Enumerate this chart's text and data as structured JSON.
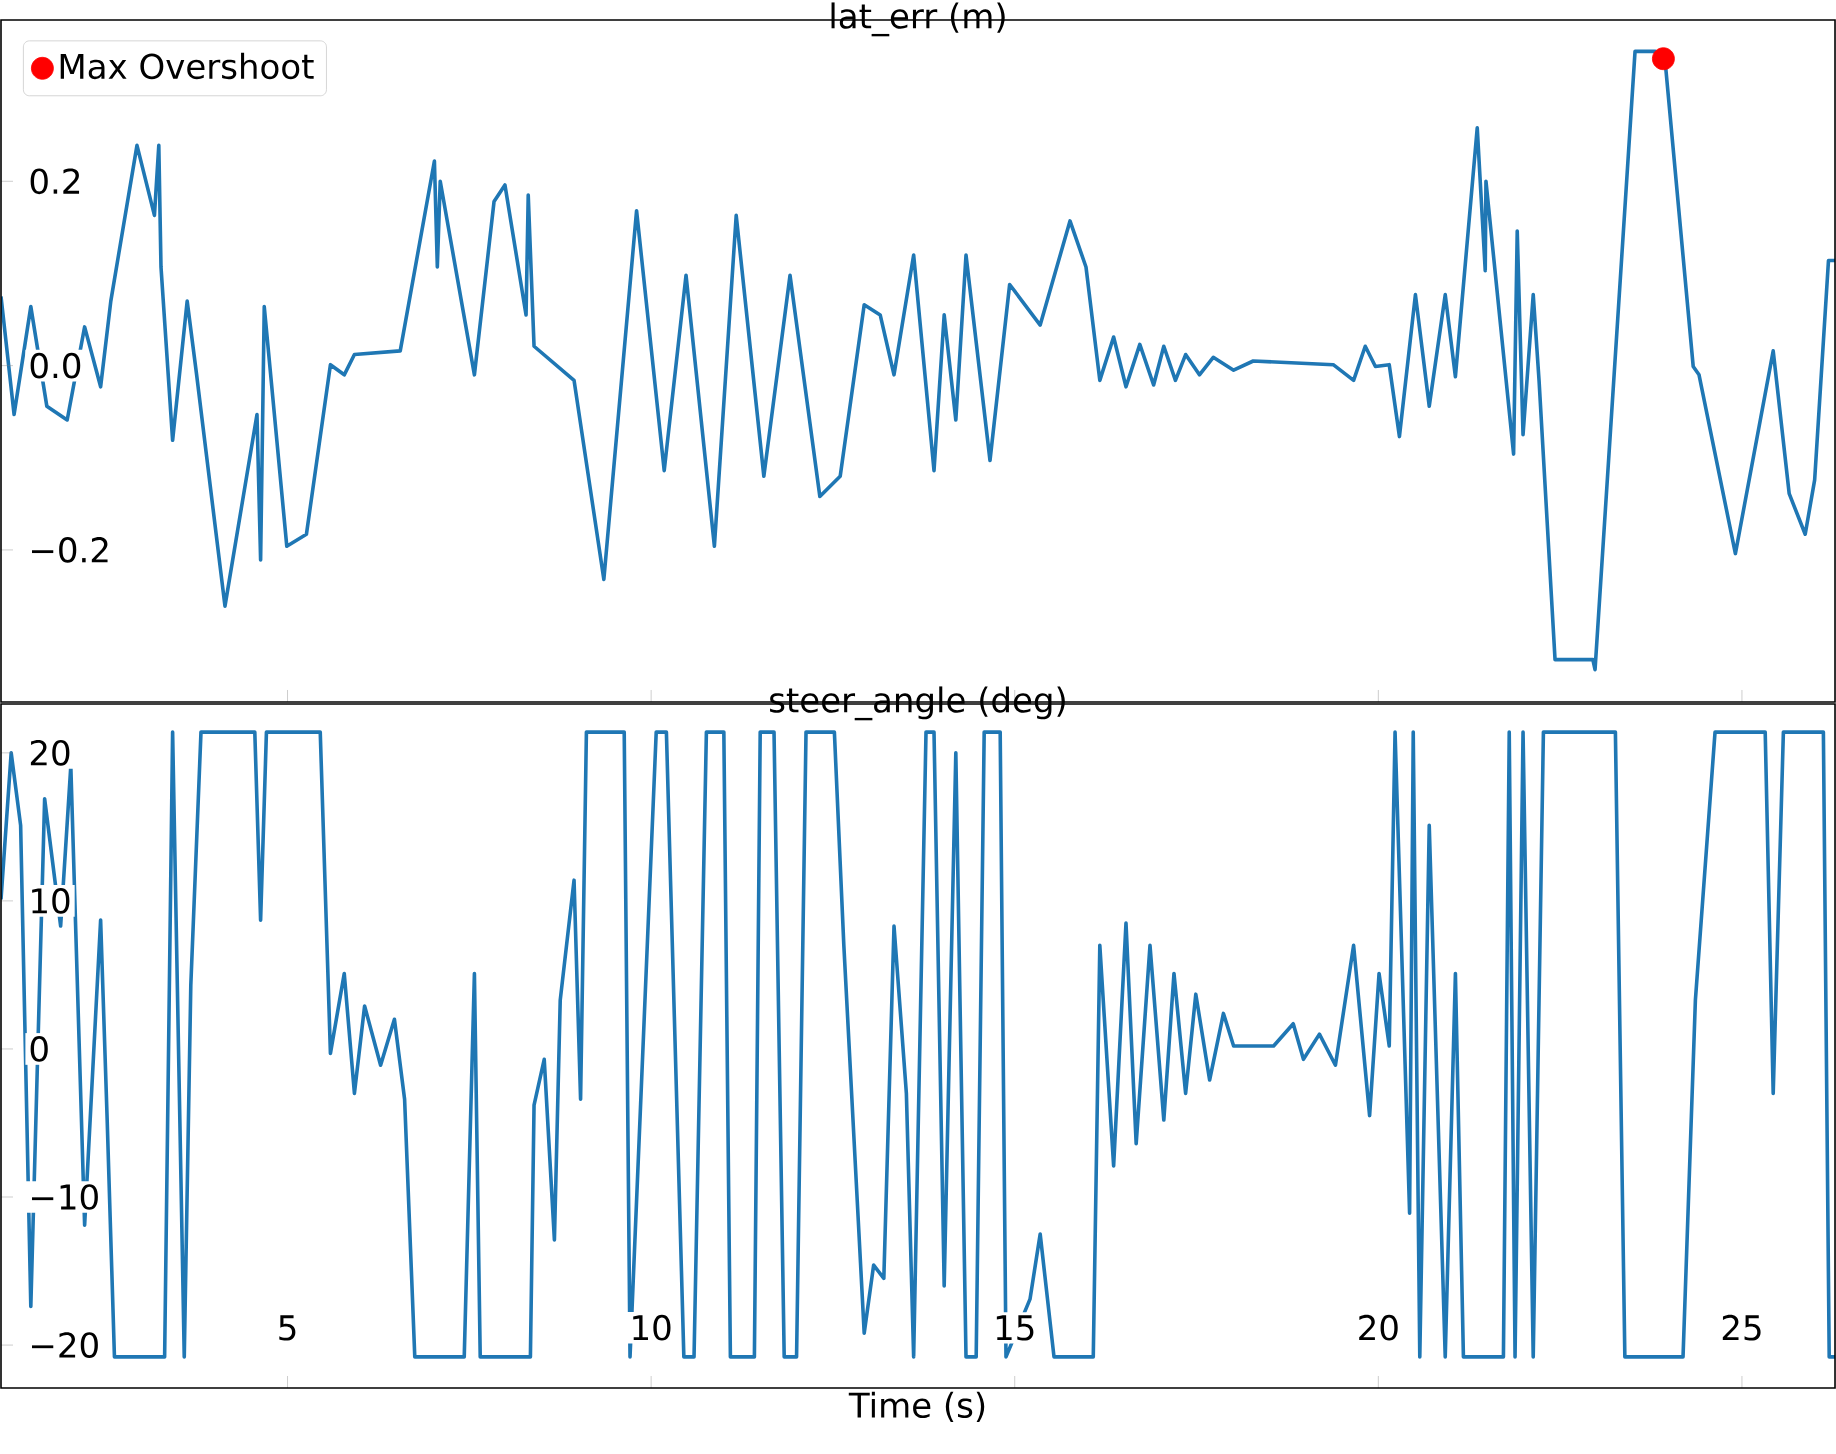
{
  "chart_data": [
    {
      "type": "line",
      "title": "lat_err (m)",
      "legend": "top left",
      "tick_labels": "y",
      "xlim": [
        1.06,
        26.28
      ],
      "ylim": [
        -0.365,
        0.375
      ],
      "xticks": [
        5,
        10,
        15,
        20,
        25
      ],
      "yticks": [
        {
          "value": -0.2,
          "label": "−0.2"
        },
        {
          "value": 0.0,
          "label": "0.0"
        },
        0.2
      ],
      "series": [
        {
          "color": "#1f77b4",
          "x": [
            1.06,
            1.24,
            1.47,
            1.69,
            1.97,
            2.21,
            2.43,
            2.57,
            2.93,
            3.17,
            3.23,
            3.26,
            3.42,
            3.62,
            3.75,
            4.14,
            4.58,
            4.63,
            4.68,
            4.99,
            5.26,
            5.59,
            5.78,
            5.92,
            6.55,
            7.02,
            7.06,
            7.1,
            7.57,
            7.84,
            7.99,
            8.28,
            8.31,
            8.39,
            8.94,
            9.35,
            9.8,
            10.18,
            10.48,
            10.87,
            11.17,
            11.55,
            11.91,
            12.32,
            12.6,
            12.93,
            13.15,
            13.34,
            13.61,
            13.89,
            14.03,
            14.19,
            14.33,
            14.66,
            14.93,
            15.35,
            15.76,
            15.98,
            16.17,
            16.36,
            16.53,
            16.72,
            16.91,
            17.05,
            17.21,
            17.35,
            17.54,
            17.73,
            18.01,
            18.28,
            19.38,
            19.66,
            19.82,
            19.96,
            20.15,
            20.29,
            20.51,
            20.7,
            20.92,
            21.06,
            21.36,
            21.47,
            21.48,
            21.86,
            21.91,
            21.99,
            22.13,
            22.21,
            22.43,
            22.95,
            22.98,
            23.53,
            23.81,
            23.95,
            24.33,
            24.41,
            24.91,
            25.43,
            25.65,
            25.87,
            26.0,
            26.19,
            26.28
          ],
          "values": [
            0.075,
            -0.053,
            0.064,
            -0.044,
            -0.059,
            0.042,
            -0.023,
            0.07,
            0.239,
            0.163,
            0.239,
            0.107,
            -0.081,
            0.07,
            -0.01,
            -0.261,
            -0.053,
            -0.211,
            0.064,
            -0.196,
            -0.183,
            0.001,
            -0.01,
            0.012,
            0.016,
            0.222,
            0.107,
            0.2,
            -0.01,
            0.178,
            0.196,
            0.055,
            0.185,
            0.021,
            -0.016,
            -0.232,
            0.168,
            -0.114,
            0.098,
            -0.196,
            0.163,
            -0.12,
            0.098,
            -0.142,
            -0.12,
            0.066,
            0.055,
            -0.01,
            0.12,
            -0.114,
            0.055,
            -0.059,
            0.12,
            -0.103,
            0.088,
            0.044,
            0.157,
            0.107,
            -0.016,
            0.031,
            -0.023,
            0.023,
            -0.021,
            0.021,
            -0.016,
            0.012,
            -0.01,
            0.009,
            -0.005,
            0.005,
            0.001,
            -0.016,
            0.021,
            -0.001,
            0.001,
            -0.077,
            0.077,
            -0.044,
            0.077,
            -0.012,
            0.258,
            0.103,
            0.2,
            -0.096,
            0.146,
            -0.075,
            0.077,
            -0.016,
            -0.319,
            -0.319,
            -0.33,
            0.341,
            0.341,
            0.325,
            -0.001,
            -0.01,
            -0.204,
            0.016,
            -0.139,
            -0.183,
            -0.124,
            0.114,
            0.114
          ]
        },
        {
          "type": "scatter",
          "name": "Max Overshoot",
          "color": "#ff0000",
          "x": [
            23.92
          ],
          "values": [
            0.333
          ]
        }
      ]
    },
    {
      "type": "line",
      "title": "steer_angle (deg)",
      "xlabel": "Time (s)",
      "xlim": [
        1.06,
        26.28
      ],
      "ylim": [
        -22.9,
        23.3
      ],
      "xticks": [
        5,
        10,
        15,
        20,
        25
      ],
      "yticks": [
        {
          "value": -20,
          "label": "−20"
        },
        {
          "value": -10,
          "label": "−10"
        },
        0,
        10,
        20
      ],
      "series": [
        {
          "color": "#1f77b4",
          "x": [
            1.06,
            1.2,
            1.33,
            1.47,
            1.66,
            1.88,
            2.02,
            2.21,
            2.43,
            2.52,
            2.62,
            3.31,
            3.42,
            3.58,
            3.67,
            3.81,
            4.55,
            4.63,
            4.71,
            5.45,
            5.59,
            5.78,
            5.92,
            6.06,
            6.28,
            6.47,
            6.61,
            6.75,
            7.43,
            7.57,
            7.65,
            8.34,
            8.39,
            8.53,
            8.67,
            8.75,
            8.94,
            9.03,
            9.11,
            9.63,
            9.71,
            10.07,
            10.21,
            10.45,
            10.59,
            10.76,
            11.0,
            11.09,
            11.42,
            11.5,
            11.69,
            11.83,
            12.0,
            12.13,
            12.52,
            12.65,
            12.93,
            13.06,
            13.2,
            13.34,
            13.51,
            13.61,
            13.78,
            13.89,
            14.03,
            14.19,
            14.33,
            14.47,
            14.58,
            14.8,
            14.88,
            15.21,
            15.35,
            15.54,
            16.08,
            16.17,
            16.36,
            16.53,
            16.67,
            16.86,
            17.05,
            17.19,
            17.35,
            17.49,
            17.68,
            17.87,
            18.01,
            18.56,
            18.83,
            18.97,
            19.19,
            19.41,
            19.66,
            19.88,
            20.01,
            20.15,
            20.23,
            20.43,
            20.48,
            20.57,
            20.7,
            20.92,
            21.06,
            21.17,
            21.72,
            21.8,
            21.88,
            21.99,
            22.13,
            22.27,
            23.26,
            23.39,
            24.19,
            24.36,
            24.63,
            25.32,
            25.43,
            25.57,
            26.12,
            26.2,
            26.28
          ],
          "values": [
            10.1,
            20.0,
            15.1,
            -17.4,
            16.9,
            8.3,
            19.1,
            -11.9,
            8.7,
            -4.8,
            -20.8,
            -20.8,
            21.4,
            -20.8,
            4.3,
            21.4,
            21.4,
            8.7,
            21.4,
            21.4,
            -0.3,
            5.1,
            -3.0,
            2.9,
            -1.1,
            2.0,
            -3.4,
            -20.8,
            -20.8,
            5.1,
            -20.8,
            -20.8,
            -3.8,
            -0.7,
            -12.9,
            3.3,
            11.4,
            -3.4,
            21.4,
            21.4,
            -20.8,
            21.4,
            21.4,
            -20.8,
            -20.8,
            21.4,
            21.4,
            -20.8,
            -20.8,
            21.4,
            21.4,
            -20.8,
            -20.8,
            21.4,
            21.4,
            7.0,
            -19.2,
            -14.6,
            -15.5,
            8.3,
            -3.0,
            -20.8,
            21.4,
            21.4,
            -16.0,
            20.0,
            -20.8,
            -20.8,
            21.4,
            21.4,
            -20.8,
            -16.9,
            -12.5,
            -20.8,
            -20.8,
            7.0,
            -7.9,
            8.5,
            -6.4,
            7.0,
            -4.8,
            5.1,
            -3.0,
            3.7,
            -2.1,
            2.4,
            0.2,
            0.2,
            1.7,
            -0.7,
            1.0,
            -1.1,
            7.0,
            -4.5,
            5.1,
            0.2,
            21.4,
            -11.1,
            21.4,
            -20.8,
            15.1,
            -20.8,
            5.1,
            -20.8,
            -20.8,
            21.4,
            -20.8,
            21.4,
            -20.8,
            21.4,
            21.4,
            -20.8,
            -20.8,
            3.3,
            21.4,
            21.4,
            -3.0,
            21.4,
            21.4,
            -20.8,
            -20.8
          ]
        }
      ]
    }
  ]
}
